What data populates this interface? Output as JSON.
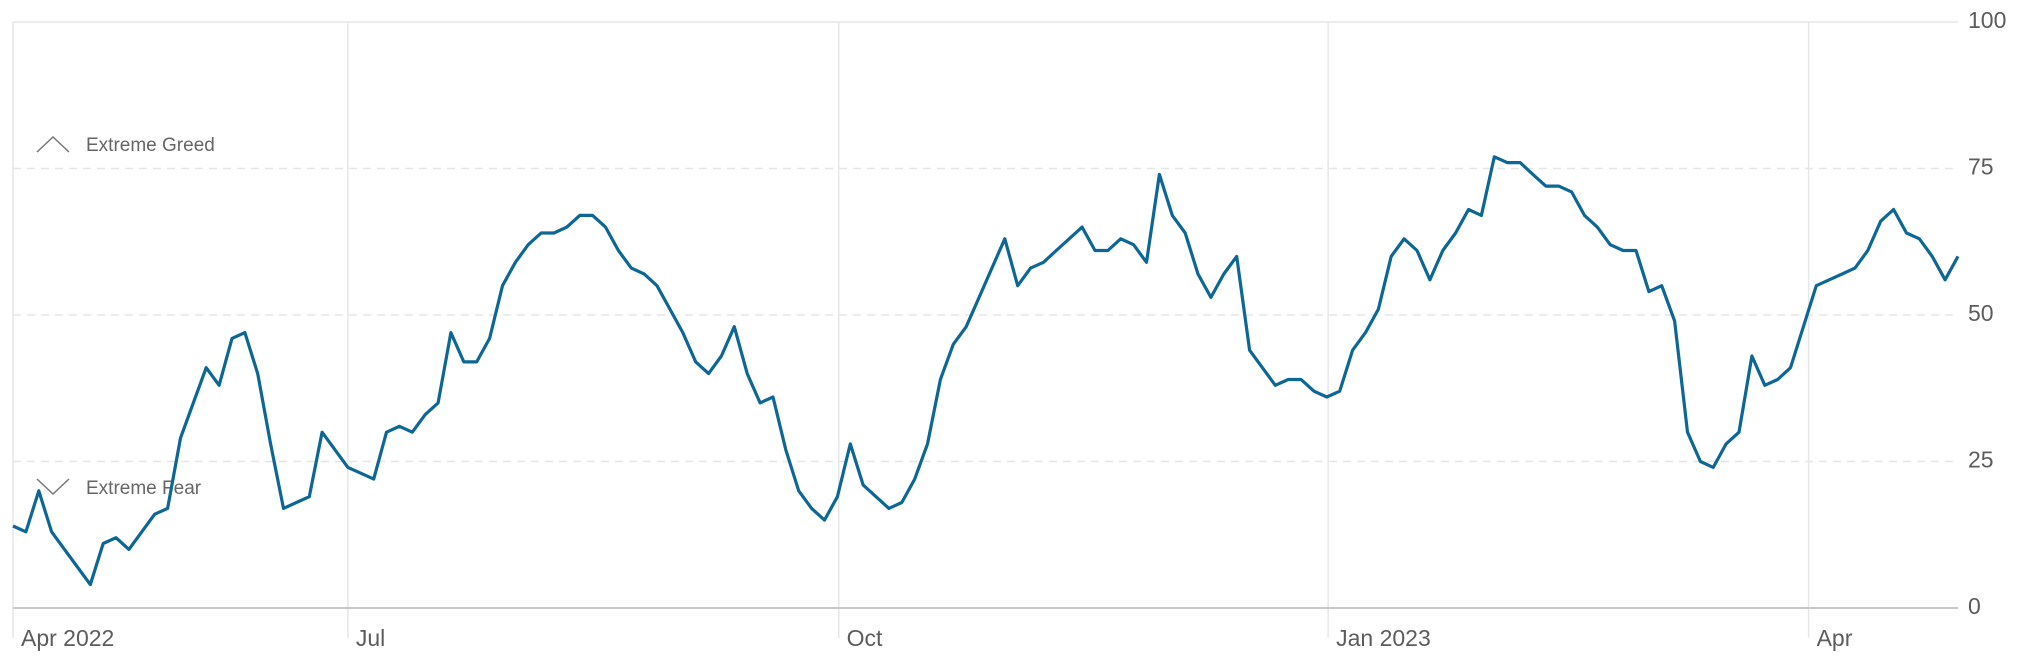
{
  "chart_data": {
    "type": "line",
    "annotations": [
      "Extreme Greed",
      "Extreme Fear"
    ],
    "series": [
      {
        "color": "#0d6796",
        "values": [
          14,
          13,
          20,
          13,
          10,
          7,
          4,
          11,
          12,
          10,
          13,
          16,
          17,
          29,
          35,
          41,
          38,
          46,
          47,
          40,
          28,
          17,
          18,
          19,
          30,
          27,
          24,
          23,
          22,
          30,
          31,
          30,
          33,
          35,
          47,
          42,
          42,
          46,
          55,
          59,
          62,
          64,
          64,
          65,
          67,
          67,
          65,
          61,
          58,
          57,
          55,
          51,
          47,
          42,
          40,
          43,
          48,
          40,
          35,
          36,
          27,
          20,
          17,
          15,
          19,
          28,
          21,
          19,
          17,
          18,
          22,
          28,
          39,
          45,
          48,
          53,
          58,
          63,
          55,
          58,
          59,
          61,
          63,
          65,
          61,
          61,
          63,
          62,
          59,
          74,
          67,
          64,
          57,
          53,
          57,
          60,
          44,
          41,
          38,
          39,
          39,
          37,
          36,
          37,
          44,
          47,
          51,
          60,
          63,
          61,
          56,
          61,
          64,
          68,
          67,
          77,
          76,
          76,
          74,
          72,
          72,
          71,
          67,
          65,
          62,
          61,
          61,
          54,
          55,
          49,
          30,
          25,
          24,
          28,
          30,
          43,
          38,
          39,
          41,
          48,
          55,
          56,
          57,
          58,
          61,
          66,
          68,
          64,
          63,
          60,
          56,
          60
        ]
      }
    ],
    "xlim": [
      0,
      151
    ],
    "xticks": [
      {
        "value": 0,
        "label": "Apr 2022"
      },
      {
        "value": 26,
        "label": "Jul"
      },
      {
        "value": 64.1,
        "label": "Oct"
      },
      {
        "value": 102.1,
        "label": "Jan 2023"
      },
      {
        "value": 139.4,
        "label": "Apr"
      }
    ],
    "ylim": [
      0,
      100
    ],
    "yticks": [
      0,
      25,
      50,
      75,
      100
    ],
    "grid": true
  }
}
